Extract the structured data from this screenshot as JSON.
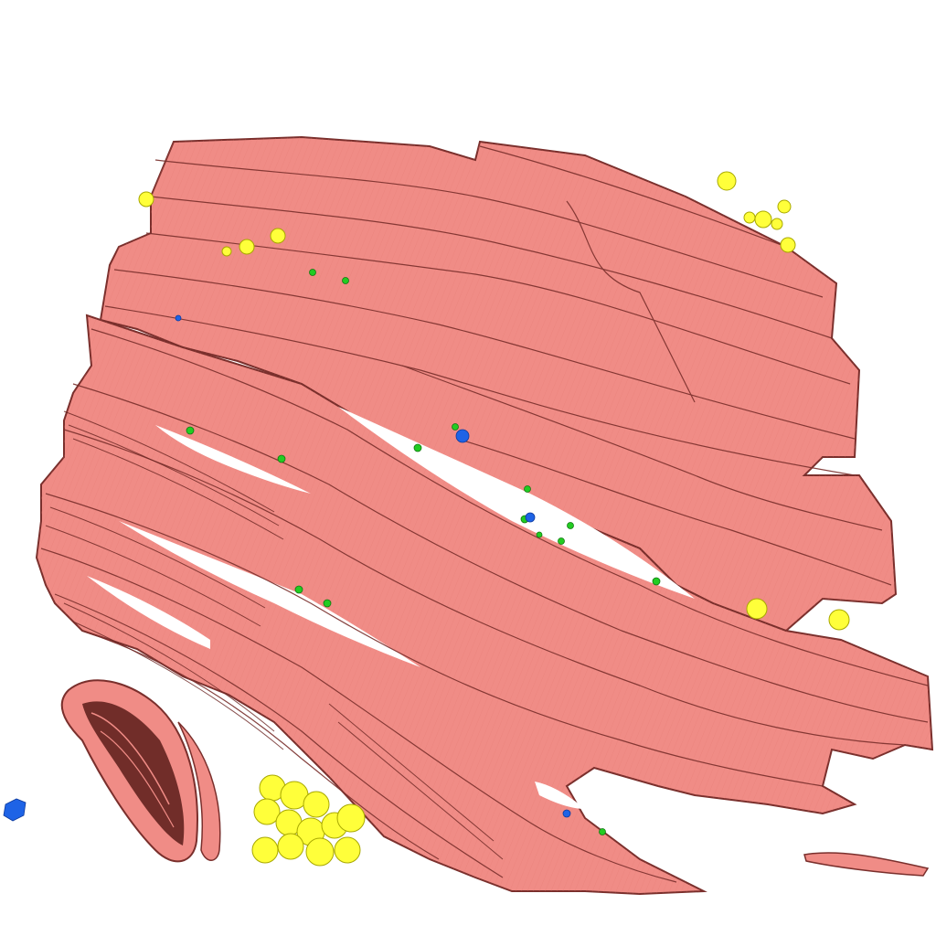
{
  "scene": {
    "background": "#ffffff",
    "colors": {
      "fiber_fill": "#f08c86",
      "fiber_light": "#f6a7a0",
      "fiber_edge": "#7a2f2c",
      "fiber_shadow": "#b75a55",
      "yellow_particles": "#ffff3a",
      "yellow_edge": "#a8a800",
      "green_particles": "#22cc22",
      "blue_particles": "#1e63e6"
    },
    "icons": [
      "muscle-fiber-bundle",
      "yellow-particle-cluster",
      "green-particle",
      "blue-particle"
    ]
  }
}
